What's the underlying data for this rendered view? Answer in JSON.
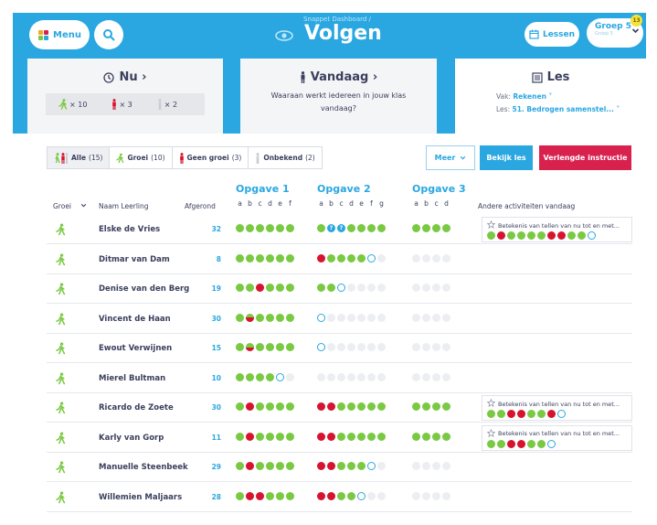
{
  "header": {
    "menu_label": "Menu",
    "breadcrumb": "Snappet Dashboard /",
    "title": "Volgen",
    "lessen_label": "Lessen",
    "groep_label": "Groep 5",
    "groep_sub": "Groep 5",
    "badge": "13"
  },
  "cards": {
    "nu": {
      "title": "Nu ›",
      "groei": "× 10",
      "geen_groei": "× 3",
      "onbekend": "× 2"
    },
    "vandaag": {
      "title": "Vandaag ›",
      "desc": "Waaraan werkt iedereen in jouw klas vandaag?"
    },
    "les": {
      "title": "Les",
      "vak_label": "Vak:",
      "vak_value": "Rekenen ˅",
      "les_label": "Les:",
      "les_value": "51. Bedrogen samenstel... ˅"
    }
  },
  "filters": {
    "alle": "Alle",
    "alle_count": "(15)",
    "groei": "Groei",
    "groei_count": "(10)",
    "geen_groei": "Geen groei",
    "geen_groei_count": "(3)",
    "onbekend": "Onbekend",
    "onbekend_count": "(2)",
    "meer": "Meer",
    "bekijk_les": "Bekijk les",
    "verlengde": "Verlengde instructie"
  },
  "table": {
    "col_groei": "Groei",
    "col_naam": "Naam Leerling",
    "col_afgerond": "Afgerond",
    "col_andere": "Andere activiteiten vandaag",
    "opgaven": [
      {
        "title": "Opgave 1",
        "letters": [
          "a",
          "b",
          "c",
          "d",
          "e",
          "f"
        ]
      },
      {
        "title": "Opgave 2",
        "letters": [
          "a",
          "b",
          "c",
          "d",
          "e",
          "f",
          "g"
        ]
      },
      {
        "title": "Opgave 3",
        "letters": [
          "a",
          "b",
          "c",
          "d"
        ]
      }
    ],
    "activity_title": "Betekenis van tellen van nu tot en met...",
    "rows": [
      {
        "name": "Elske de Vries",
        "afgerond": "32",
        "o1": "gggggg",
        "o2": "gqqgggg",
        "o3": "gggg",
        "act": "grggggrrggo"
      },
      {
        "name": "Ditmar van Dam",
        "afgerond": "8",
        "o1": "gggggg",
        "o2": "rggggoe",
        "o3": "eeee",
        "act": ""
      },
      {
        "name": "Denise van den Berg",
        "afgerond": "19",
        "o1": "ggrggg",
        "o2": "ggoeeee",
        "o3": "eeee",
        "act": ""
      },
      {
        "name": "Vincent de Haan",
        "afgerond": "30",
        "o1": "ghgggg",
        "o2": "oeeeeee",
        "o3": "eeee",
        "act": ""
      },
      {
        "name": "Ewout Verwijnen",
        "afgerond": "15",
        "o1": "ghgggg",
        "o2": "oeeeeee",
        "o3": "eeee",
        "act": ""
      },
      {
        "name": "Mierel Bultman",
        "afgerond": "10",
        "o1": "ggggoe",
        "o2": "eeeeeee",
        "o3": "eeee",
        "act": ""
      },
      {
        "name": "Ricardo de Zoete",
        "afgerond": "30",
        "o1": "grgggg",
        "o2": "rrggggg",
        "o3": "gggg",
        "act": "ggrrggro"
      },
      {
        "name": "Karly van Gorp",
        "afgerond": "11",
        "o1": "grgggg",
        "o2": "rrggggg",
        "o3": "gggg",
        "act": "ggrrggo"
      },
      {
        "name": "Manuelle Steenbeek",
        "afgerond": "29",
        "o1": "grgggg",
        "o2": "rrgggoe",
        "o3": "eeee",
        "act": ""
      },
      {
        "name": "Willemien Maljaars",
        "afgerond": "28",
        "o1": "grrggg",
        "o2": "rrggoee",
        "o3": "eeee",
        "act": ""
      }
    ]
  },
  "colors": {
    "brand": "#2aa7e1",
    "groei": "#7ac943",
    "geen_groei": "#d7142f",
    "accent_red": "#d9214e"
  }
}
